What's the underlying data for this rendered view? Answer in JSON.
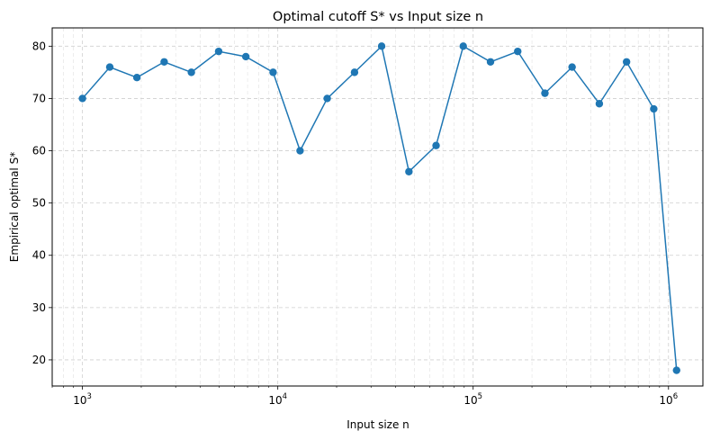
{
  "chart_data": {
    "type": "line",
    "title": "Optimal cutoff S* vs Input size n",
    "xlabel": "Input size n",
    "ylabel": "Empirical optimal S*",
    "xscale": "log",
    "xlim": [
      700,
      1500000
    ],
    "ylim": [
      15,
      83.5
    ],
    "grid": true,
    "color": "#1f77b4",
    "x_ticks": [
      {
        "value": 1000,
        "base": "10",
        "exp": "3"
      },
      {
        "value": 10000,
        "base": "10",
        "exp": "4"
      },
      {
        "value": 100000,
        "base": "10",
        "exp": "5"
      },
      {
        "value": 1000000,
        "base": "10",
        "exp": "6"
      }
    ],
    "y_ticks": [
      20,
      30,
      40,
      50,
      60,
      70,
      80
    ],
    "x": [
      1000,
      1380,
      1900,
      2620,
      3610,
      4980,
      6860,
      9460,
      13000,
      17900,
      24700,
      34000,
      46900,
      64600,
      89000,
      122700,
      169100,
      233000,
      321000,
      442500,
      609900,
      840500,
      1100000
    ],
    "series": [
      {
        "values": [
          70,
          76,
          74,
          77,
          75,
          79,
          78,
          75,
          60,
          70,
          75,
          80,
          56,
          61,
          80,
          77,
          79,
          71,
          76,
          69,
          77,
          68,
          18
        ]
      }
    ]
  }
}
